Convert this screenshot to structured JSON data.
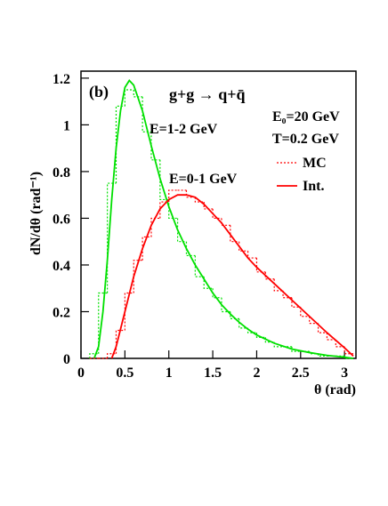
{
  "chart_data": {
    "type": "line",
    "panel_label": "(b)",
    "title": "g+g → q+q̄",
    "x_label": "θ (rad)",
    "y_label": "dN/dθ (rad⁻¹)",
    "annotations": [
      "E₀=20 GeV",
      "T=0.2 GeV"
    ],
    "xlim": [
      0,
      3.13
    ],
    "ylim": [
      0,
      1.23
    ],
    "xticks": [
      0,
      0.5,
      1,
      1.5,
      2,
      2.5,
      3
    ],
    "yticks": [
      0,
      0.2,
      0.4,
      0.6,
      0.8,
      1,
      1.2
    ],
    "groups": [
      {
        "label": "E=1-2 GeV",
        "color": "#00e000",
        "curve": {
          "x": [
            0.15,
            0.2,
            0.25,
            0.3,
            0.35,
            0.4,
            0.45,
            0.5,
            0.55,
            0.6,
            0.7,
            0.8,
            0.9,
            1.0,
            1.1,
            1.2,
            1.3,
            1.4,
            1.5,
            1.6,
            1.7,
            1.8,
            1.9,
            2.0,
            2.2,
            2.4,
            2.6,
            2.8,
            3.0,
            3.1
          ],
          "values": [
            0,
            0.05,
            0.2,
            0.42,
            0.68,
            0.9,
            1.06,
            1.16,
            1.19,
            1.17,
            1.06,
            0.91,
            0.77,
            0.65,
            0.55,
            0.47,
            0.4,
            0.34,
            0.28,
            0.23,
            0.19,
            0.155,
            0.125,
            0.1,
            0.065,
            0.04,
            0.025,
            0.013,
            0.005,
            0
          ]
        },
        "mc": {
          "bins": [
            0.1,
            0.2,
            0.3,
            0.4,
            0.5,
            0.6,
            0.7,
            0.8,
            0.9,
            1.0,
            1.1,
            1.2,
            1.3,
            1.4,
            1.5,
            1.6,
            1.7,
            1.8,
            1.9,
            2.0,
            2.1,
            2.2,
            2.3,
            2.4,
            2.5,
            2.6,
            2.7,
            2.8,
            2.9,
            3.0,
            3.1
          ],
          "values": [
            0.02,
            0.28,
            0.75,
            1.08,
            1.15,
            1.12,
            0.97,
            0.85,
            0.68,
            0.6,
            0.5,
            0.44,
            0.35,
            0.3,
            0.26,
            0.2,
            0.17,
            0.13,
            0.11,
            0.09,
            0.07,
            0.05,
            0.05,
            0.03,
            0.03,
            0.02,
            0.01,
            0.01,
            0.01,
            0
          ]
        }
      },
      {
        "label": "E=0-1 GeV",
        "color": "#ff0000",
        "curve": {
          "x": [
            0.35,
            0.4,
            0.5,
            0.6,
            0.7,
            0.8,
            0.9,
            1.0,
            1.1,
            1.2,
            1.3,
            1.4,
            1.5,
            1.6,
            1.7,
            1.8,
            1.9,
            2.0,
            2.2,
            2.4,
            2.6,
            2.8,
            3.0,
            3.1
          ],
          "values": [
            0,
            0.05,
            0.2,
            0.35,
            0.47,
            0.57,
            0.64,
            0.68,
            0.7,
            0.7,
            0.69,
            0.66,
            0.62,
            0.58,
            0.53,
            0.48,
            0.43,
            0.39,
            0.32,
            0.25,
            0.18,
            0.11,
            0.045,
            0.01
          ]
        },
        "mc": {
          "bins": [
            0.1,
            0.2,
            0.3,
            0.4,
            0.5,
            0.6,
            0.7,
            0.8,
            0.9,
            1.0,
            1.1,
            1.2,
            1.3,
            1.4,
            1.5,
            1.6,
            1.7,
            1.8,
            1.9,
            2.0,
            2.1,
            2.2,
            2.3,
            2.4,
            2.5,
            2.6,
            2.7,
            2.8,
            2.9,
            3.0,
            3.1
          ],
          "values": [
            0,
            0,
            0.02,
            0.12,
            0.28,
            0.42,
            0.52,
            0.6,
            0.67,
            0.72,
            0.72,
            0.69,
            0.67,
            0.64,
            0.6,
            0.57,
            0.5,
            0.46,
            0.43,
            0.37,
            0.34,
            0.29,
            0.26,
            0.22,
            0.18,
            0.15,
            0.11,
            0.08,
            0.05,
            0.02
          ]
        }
      }
    ],
    "legend": [
      {
        "name": "MC",
        "color": "#ff0000",
        "dash": true
      },
      {
        "name": "Int.",
        "color": "#ff0000",
        "dash": false
      }
    ]
  }
}
